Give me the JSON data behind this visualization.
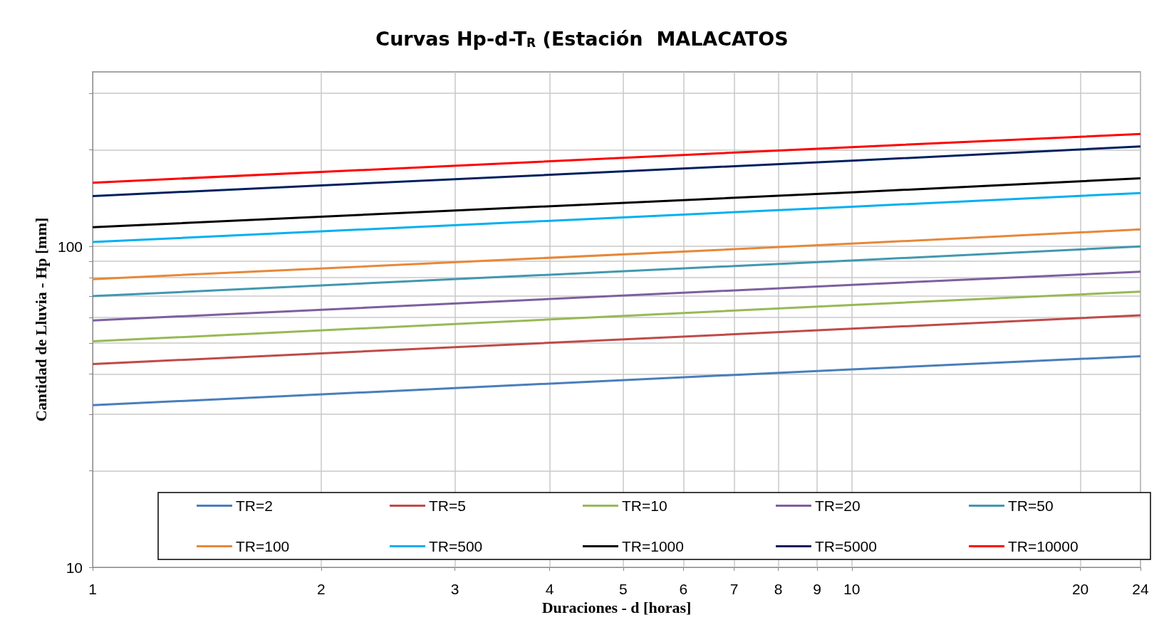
{
  "chart_data": {
    "type": "line",
    "title": "Curvas Hp-d-T$_{R}$ (Estación  MALACATOS",
    "xlabel": "Duraciones - d [horas]",
    "ylabel": "Cantidad de Lluvia - Hp [mm]",
    "log": "xy",
    "grid": true,
    "legend": "bottom",
    "marker": "none",
    "line_style": "solid",
    "xlim": [
      1,
      24
    ],
    "xticks": [
      1,
      2,
      3,
      4,
      5,
      6,
      7,
      8,
      9,
      10,
      20,
      24
    ],
    "ylim": [
      10,
      350
    ],
    "yticks": [
      10,
      {
        "value": 20,
        "label": null
      },
      {
        "value": 30,
        "label": null
      },
      {
        "value": 40,
        "label": null
      },
      {
        "value": 50,
        "label": null
      },
      {
        "value": 60,
        "label": null
      },
      {
        "value": 70,
        "label": null
      },
      {
        "value": 80,
        "label": null
      },
      {
        "value": 90,
        "label": null
      },
      100,
      {
        "value": 200,
        "label": null
      },
      {
        "value": 300,
        "label": null
      }
    ],
    "series": [
      {
        "name": "TR=2",
        "color": "#4a7ebb",
        "x": [
          1,
          10,
          24
        ],
        "values": [
          32.0,
          41.4,
          45.5
        ]
      },
      {
        "name": "TR=5",
        "color": "#be4b48",
        "x": [
          1,
          10,
          24
        ],
        "values": [
          43.0,
          55.4,
          61.0
        ]
      },
      {
        "name": "TR=10",
        "color": "#98b954",
        "x": [
          1,
          10,
          24
        ],
        "values": [
          50.6,
          65.7,
          72.3
        ]
      },
      {
        "name": "TR=20",
        "color": "#7d5fa0",
        "x": [
          1,
          10,
          24
        ],
        "values": [
          58.8,
          75.9,
          83.4
        ]
      },
      {
        "name": "TR=50",
        "color": "#4198af",
        "x": [
          1,
          10,
          24
        ],
        "values": [
          70.0,
          90.4,
          100
        ]
      },
      {
        "name": "TR=100",
        "color": "#e6883a",
        "x": [
          1,
          10,
          24
        ],
        "values": [
          79.1,
          102,
          113
        ]
      },
      {
        "name": "TR=500",
        "color": "#00b0f0",
        "x": [
          1,
          10,
          24
        ],
        "values": [
          103.2,
          133,
          146.7
        ]
      },
      {
        "name": "TR=1000",
        "color": "#000000",
        "x": [
          1,
          10,
          24
        ],
        "values": [
          114.8,
          147.4,
          163
        ]
      },
      {
        "name": "TR=5000",
        "color": "#002060",
        "x": [
          1,
          10,
          24
        ],
        "values": [
          143.6,
          185,
          205
        ]
      },
      {
        "name": "TR=10000",
        "color": "#ff0000",
        "x": [
          1,
          10,
          24
        ],
        "values": [
          158,
          204,
          224
        ]
      }
    ]
  }
}
